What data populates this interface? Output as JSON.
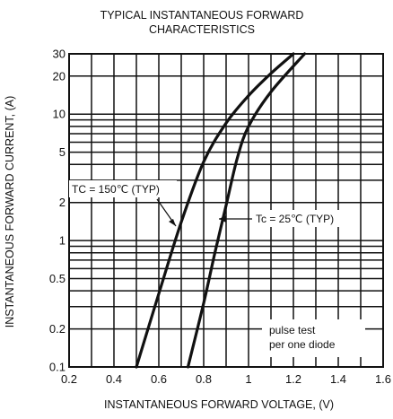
{
  "chart_data": {
    "type": "line",
    "title": "TYPICAL INSTANTANEOUS FORWARD CHARACTERISTICS",
    "title_lines": [
      "TYPICAL INSTANTANEOUS FORWARD",
      "CHARACTERISTICS"
    ],
    "xlabel": "INSTANTANEOUS FORWARD VOLTAGE, (V)",
    "ylabel": "INSTANTANEOUS FORWARD CURRENT, (A)",
    "xlim": [
      0.2,
      1.6
    ],
    "ylim": [
      0.1,
      30
    ],
    "yscale": "log",
    "grid": true,
    "x_ticks": [
      0.2,
      0.4,
      0.6,
      0.8,
      1,
      1.2,
      1.4,
      1.6
    ],
    "x_tick_labels": [
      "0.2",
      "0.4",
      "0.6",
      "0.8",
      "1",
      "1.2",
      "1.4",
      "1.6"
    ],
    "y_tick_values": [
      0.1,
      0.2,
      0.5,
      1,
      2,
      5,
      10,
      20,
      30
    ],
    "y_tick_labels": [
      "0.1",
      "0.2",
      "0.5",
      "1",
      "2",
      "5",
      "10",
      "20",
      "30"
    ],
    "series": [
      {
        "label": "TC = 150℃ (TYP)",
        "x": [
          0.5,
          0.6,
          0.7,
          0.8,
          0.9,
          1.0,
          1.1,
          1.2
        ],
        "y": [
          0.1,
          0.38,
          1.4,
          4.2,
          8.5,
          14,
          21,
          30
        ]
      },
      {
        "label": "Tc = 25℃ (TYP)",
        "x": [
          0.73,
          0.8,
          0.85,
          0.9,
          0.95,
          1.0,
          1.1,
          1.25
        ],
        "y": [
          0.1,
          0.32,
          0.8,
          1.9,
          4.5,
          8,
          15,
          30
        ]
      }
    ],
    "annotations": [
      "pulse test",
      "per one diode"
    ]
  }
}
